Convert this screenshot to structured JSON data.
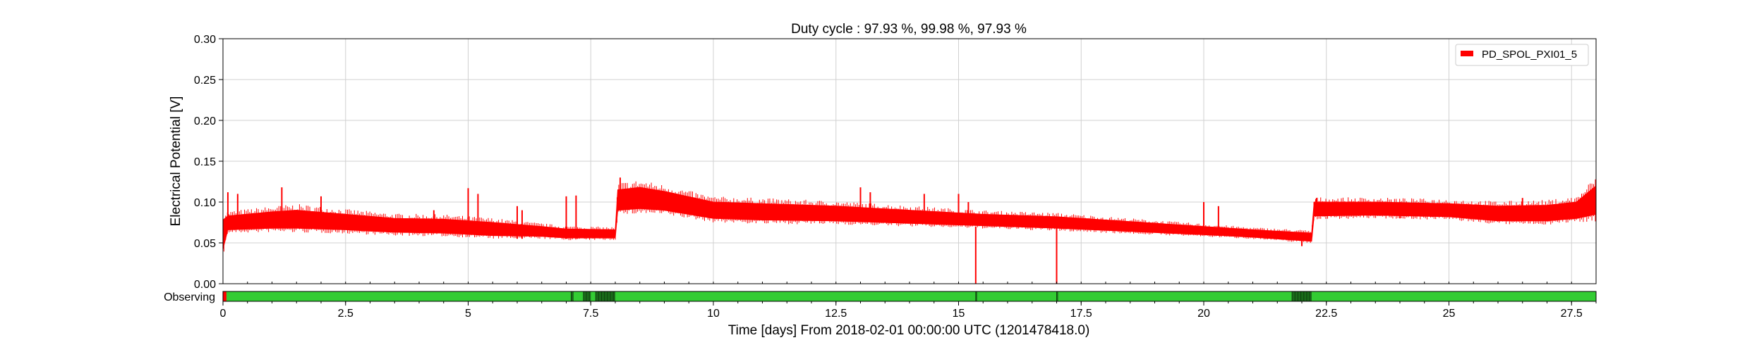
{
  "chart_data": {
    "type": "line",
    "title": "Duty cycle : 97.93 %, 99.98 %, 97.93 %",
    "xlabel": "Time [days] From 2018-02-01 00:00:00 UTC (1201478418.0)",
    "ylabel": "Electrical Potential [V]",
    "xlim": [
      0,
      28
    ],
    "ylim": [
      0,
      0.3
    ],
    "grid": true,
    "legend_position": "top-right",
    "xticks": [
      0,
      2.5,
      5,
      7.5,
      10,
      12.5,
      15,
      17.5,
      20,
      22.5,
      25,
      27.5
    ],
    "xtick_labels": [
      "0",
      "2.5",
      "5",
      "7.5",
      "10",
      "12.5",
      "15",
      "17.5",
      "20",
      "22.5",
      "25",
      "27.5"
    ],
    "yticks": [
      0.0,
      0.05,
      0.1,
      0.15,
      0.2,
      0.25,
      0.3
    ],
    "ytick_labels": [
      "0.00",
      "0.05",
      "0.10",
      "0.15",
      "0.20",
      "0.25",
      "0.30"
    ],
    "series": [
      {
        "name": "PD_SPOL_PXI01_5",
        "color": "#ff0000",
        "band": [
          {
            "x": 0.0,
            "lo": 0.042,
            "hi": 0.078
          },
          {
            "x": 0.1,
            "lo": 0.066,
            "hi": 0.083
          },
          {
            "x": 1.0,
            "lo": 0.068,
            "hi": 0.088
          },
          {
            "x": 1.5,
            "lo": 0.068,
            "hi": 0.09
          },
          {
            "x": 2.5,
            "lo": 0.066,
            "hi": 0.085
          },
          {
            "x": 3.5,
            "lo": 0.063,
            "hi": 0.08
          },
          {
            "x": 4.5,
            "lo": 0.062,
            "hi": 0.079
          },
          {
            "x": 5.5,
            "lo": 0.059,
            "hi": 0.075
          },
          {
            "x": 6.5,
            "lo": 0.058,
            "hi": 0.07
          },
          {
            "x": 7.0,
            "lo": 0.056,
            "hi": 0.067
          },
          {
            "x": 8.0,
            "lo": 0.056,
            "hi": 0.066
          },
          {
            "x": 8.05,
            "lo": 0.09,
            "hi": 0.115
          },
          {
            "x": 8.5,
            "lo": 0.092,
            "hi": 0.118
          },
          {
            "x": 9.0,
            "lo": 0.09,
            "hi": 0.113
          },
          {
            "x": 10.0,
            "lo": 0.08,
            "hi": 0.1
          },
          {
            "x": 11.0,
            "lo": 0.078,
            "hi": 0.098
          },
          {
            "x": 12.5,
            "lo": 0.077,
            "hi": 0.095
          },
          {
            "x": 14.0,
            "lo": 0.074,
            "hi": 0.09
          },
          {
            "x": 15.5,
            "lo": 0.071,
            "hi": 0.085
          },
          {
            "x": 17.0,
            "lo": 0.068,
            "hi": 0.082
          },
          {
            "x": 18.5,
            "lo": 0.064,
            "hi": 0.076
          },
          {
            "x": 20.0,
            "lo": 0.06,
            "hi": 0.07
          },
          {
            "x": 21.0,
            "lo": 0.057,
            "hi": 0.066
          },
          {
            "x": 22.2,
            "lo": 0.052,
            "hi": 0.062
          },
          {
            "x": 22.25,
            "lo": 0.083,
            "hi": 0.1
          },
          {
            "x": 23.5,
            "lo": 0.084,
            "hi": 0.1
          },
          {
            "x": 25.0,
            "lo": 0.082,
            "hi": 0.098
          },
          {
            "x": 26.0,
            "lo": 0.077,
            "hi": 0.095
          },
          {
            "x": 27.0,
            "lo": 0.077,
            "hi": 0.096
          },
          {
            "x": 27.6,
            "lo": 0.08,
            "hi": 0.1
          },
          {
            "x": 28.0,
            "lo": 0.085,
            "hi": 0.12
          }
        ],
        "spikes": [
          {
            "x": 0.1,
            "y0": 0.07,
            "y1": 0.112
          },
          {
            "x": 0.3,
            "y0": 0.07,
            "y1": 0.11
          },
          {
            "x": 1.2,
            "y0": 0.08,
            "y1": 0.118
          },
          {
            "x": 2.0,
            "y0": 0.075,
            "y1": 0.107
          },
          {
            "x": 4.3,
            "y0": 0.07,
            "y1": 0.09
          },
          {
            "x": 5.0,
            "y0": 0.06,
            "y1": 0.117
          },
          {
            "x": 5.2,
            "y0": 0.06,
            "y1": 0.11
          },
          {
            "x": 6.0,
            "y0": 0.055,
            "y1": 0.095
          },
          {
            "x": 6.1,
            "y0": 0.055,
            "y1": 0.09
          },
          {
            "x": 7.0,
            "y0": 0.055,
            "y1": 0.107
          },
          {
            "x": 7.2,
            "y0": 0.055,
            "y1": 0.108
          },
          {
            "x": 8.1,
            "y0": 0.095,
            "y1": 0.13
          },
          {
            "x": 13.0,
            "y0": 0.085,
            "y1": 0.118
          },
          {
            "x": 13.2,
            "y0": 0.085,
            "y1": 0.112
          },
          {
            "x": 14.3,
            "y0": 0.08,
            "y1": 0.11
          },
          {
            "x": 15.0,
            "y0": 0.075,
            "y1": 0.11
          },
          {
            "x": 15.2,
            "y0": 0.075,
            "y1": 0.1
          },
          {
            "x": 15.35,
            "y0": 0.0,
            "y1": 0.07
          },
          {
            "x": 17.0,
            "y0": 0.0,
            "y1": 0.068
          },
          {
            "x": 20.0,
            "y0": 0.065,
            "y1": 0.1
          },
          {
            "x": 20.3,
            "y0": 0.065,
            "y1": 0.095
          },
          {
            "x": 22.0,
            "y0": 0.046,
            "y1": 0.06
          },
          {
            "x": 22.3,
            "y0": 0.085,
            "y1": 0.105
          },
          {
            "x": 23.5,
            "y0": 0.09,
            "y1": 0.1
          },
          {
            "x": 24.0,
            "y0": 0.08,
            "y1": 0.1
          },
          {
            "x": 26.5,
            "y0": 0.08,
            "y1": 0.105
          }
        ]
      }
    ],
    "state_bar": {
      "label": "Observing",
      "on_color": "#33cc33",
      "off_color": "#ff0000",
      "partial_color": "#1a6b1a",
      "off_segments": [
        [
          0.0,
          0.07
        ]
      ],
      "partial_segments": [
        [
          7.1,
          7.15
        ],
        [
          7.35,
          7.5
        ],
        [
          7.6,
          8.0
        ],
        [
          21.8,
          22.2
        ],
        [
          15.35,
          15.38
        ],
        [
          17.0,
          17.03
        ]
      ]
    }
  }
}
